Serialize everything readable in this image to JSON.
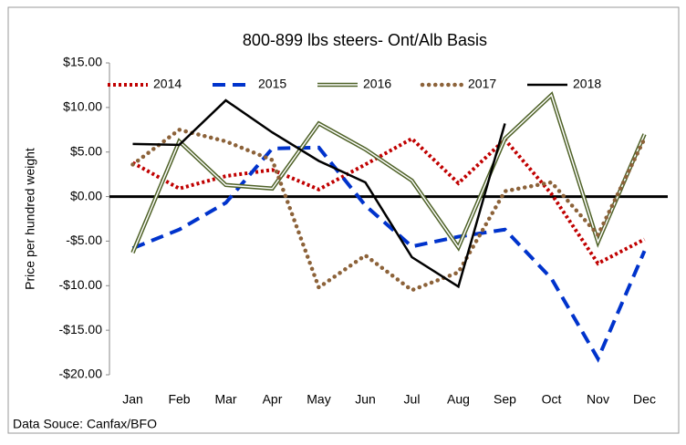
{
  "chart_data": {
    "type": "line",
    "title": "800-899 lbs steers- Ont/Alb Basis",
    "y_label": "Price per hundred weight",
    "source": "Data Souce: Canfax/BFO",
    "categories": [
      "Jan",
      "Feb",
      "Mar",
      "Apr",
      "May",
      "Jun",
      "Jul",
      "Aug",
      "Sep",
      "Oct",
      "Nov",
      "Dec"
    ],
    "series": [
      {
        "name": "2014",
        "color": "#c00000",
        "style": "dotted",
        "values": [
          3.8,
          0.9,
          2.3,
          3.0,
          0.8,
          3.6,
          6.5,
          1.5,
          6.4,
          0.3,
          -7.5,
          -4.8
        ]
      },
      {
        "name": "2015",
        "color": "#0033cc",
        "style": "dashed",
        "values": [
          -5.8,
          -3.7,
          -0.7,
          5.4,
          5.5,
          -1.0,
          -5.6,
          -4.5,
          -3.7,
          -9.2,
          -18.2,
          -6.1
        ]
      },
      {
        "name": "2016",
        "color": "#4f6228",
        "style": "double",
        "values": [
          -6.3,
          6.2,
          1.3,
          0.9,
          8.2,
          5.3,
          1.8,
          -5.7,
          6.5,
          11.4,
          -5.1,
          7.0
        ]
      },
      {
        "name": "2017",
        "color": "#8c6239",
        "style": "round-dotted",
        "values": [
          3.6,
          7.5,
          6.2,
          4.1,
          -10.2,
          -6.6,
          -10.5,
          -8.5,
          0.6,
          1.6,
          -4.3,
          6.5
        ]
      },
      {
        "name": "2018",
        "color": "#000000",
        "style": "solid",
        "values": [
          5.9,
          5.8,
          10.8,
          7.2,
          4.0,
          1.6,
          -6.8,
          -10.1,
          8.2,
          null,
          null,
          null
        ]
      }
    ],
    "ylim": [
      -20,
      15
    ],
    "yticks": [
      {
        "value": -20,
        "label": "-$20.00"
      },
      {
        "value": -15,
        "label": "-$15.00"
      },
      {
        "value": -10,
        "label": "-$10.00"
      },
      {
        "value": -5,
        "label": "-$5.00"
      },
      {
        "value": 0,
        "label": "$0.00"
      },
      {
        "value": 5,
        "label": "$5.00"
      },
      {
        "value": 10,
        "label": "$10.00"
      },
      {
        "value": 15,
        "label": "$15.00"
      }
    ],
    "zero_line": true,
    "legend": "top"
  }
}
